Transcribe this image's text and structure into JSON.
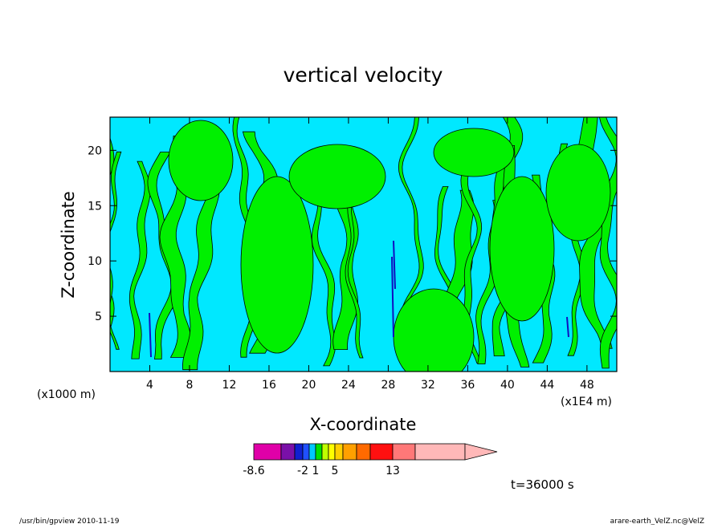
{
  "chart_data": {
    "type": "heatmap",
    "title": "vertical velocity",
    "xlabel": "X-coordinate",
    "ylabel": "Z-coordinate",
    "x_unit_label": "(x1E4 m)",
    "y_unit_label": "(x1000 m)",
    "xlim": [
      0,
      51
    ],
    "ylim": [
      0,
      23
    ],
    "x_ticks": [
      4,
      8,
      12,
      16,
      20,
      24,
      28,
      32,
      36,
      40,
      44,
      48
    ],
    "y_ticks": [
      5,
      10,
      15,
      20
    ],
    "time_label": "t=36000 s",
    "colorbar": {
      "colors": [
        "#e000a8",
        "#7a10a8",
        "#1020d0",
        "#2050ff",
        "#00c8ff",
        "#00e000",
        "#c0ff00",
        "#ffff00",
        "#ffd000",
        "#ffa000",
        "#ff6a00",
        "#ff1010",
        "#ff7878",
        "#ffb8b8"
      ],
      "labels": [
        "-8.6",
        "-2",
        "1",
        "5",
        "13"
      ],
      "label_at_boundary": [
        0,
        3,
        5,
        8,
        12
      ]
    },
    "field_colors": {
      "negative": "#00e8ff",
      "positive": "#00f000",
      "strong_negative": "#1010c0"
    }
  },
  "footer": {
    "left": "/usr/bin/gpview   2010-11-19",
    "right": "arare-earth_VelZ.nc@VelZ"
  }
}
